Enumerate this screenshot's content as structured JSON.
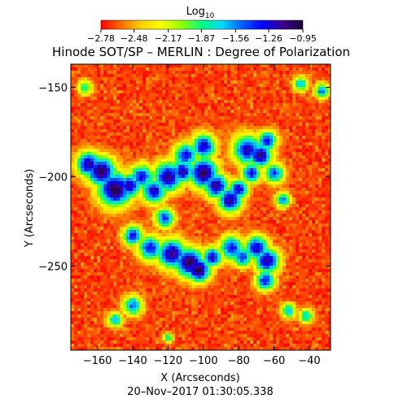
{
  "chart_data": {
    "type": "heatmap",
    "title": "Hinode SOT/SP – MERLIN : Degree of Polarization",
    "xlabel": "X (Arcseconds)",
    "ylabel": "Y (Arcseconds)",
    "footer": "20–Nov–2017 01:30:05.338",
    "xlim": [
      -175,
      -28
    ],
    "ylim": [
      -297,
      -137
    ],
    "xticks": [
      -160,
      -140,
      -120,
      -100,
      -80,
      -60,
      -40
    ],
    "yticks": [
      -150,
      -200,
      -250
    ],
    "colorbar": {
      "title": "Log",
      "title_subscript": "10",
      "range": [
        -2.78,
        -0.95
      ],
      "ticks": [
        -2.78,
        -2.48,
        -2.17,
        -1.87,
        -1.56,
        -1.26,
        -0.95
      ],
      "tick_labels": [
        "−2.78",
        "−2.48",
        "−2.17",
        "−1.87",
        "−1.56",
        "−1.26",
        "−0.95"
      ],
      "colormap": [
        "#ff0000",
        "#ff6a00",
        "#ffd200",
        "#ffff00",
        "#90ff00",
        "#00ff80",
        "#00d8ff",
        "#0060ff",
        "#0000ff",
        "#3c0090",
        "#1a0030"
      ]
    },
    "background_level": -2.7,
    "structures": [
      {
        "x": -165,
        "y": -193,
        "r": 5,
        "value": -1.1
      },
      {
        "x": -158,
        "y": -197,
        "r": 6,
        "value": -1.0
      },
      {
        "x": -150,
        "y": -207,
        "r": 7,
        "value": -0.98
      },
      {
        "x": -142,
        "y": -205,
        "r": 5,
        "value": -1.2
      },
      {
        "x": -135,
        "y": -200,
        "r": 5,
        "value": -1.3
      },
      {
        "x": -128,
        "y": -208,
        "r": 5,
        "value": -1.2
      },
      {
        "x": -120,
        "y": -200,
        "r": 6,
        "value": -1.1
      },
      {
        "x": -112,
        "y": -197,
        "r": 5,
        "value": -1.2
      },
      {
        "x": -110,
        "y": -188,
        "r": 5,
        "value": -1.3
      },
      {
        "x": -100,
        "y": -183,
        "r": 5,
        "value": -1.2
      },
      {
        "x": -100,
        "y": -198,
        "r": 6,
        "value": -1.0
      },
      {
        "x": -93,
        "y": -205,
        "r": 5,
        "value": -1.1
      },
      {
        "x": -85,
        "y": -213,
        "r": 5,
        "value": -1.1
      },
      {
        "x": -80,
        "y": -207,
        "r": 4,
        "value": -1.2
      },
      {
        "x": -75,
        "y": -185,
        "r": 6,
        "value": -1.2
      },
      {
        "x": -68,
        "y": -188,
        "r": 5,
        "value": -1.1
      },
      {
        "x": -64,
        "y": -180,
        "r": 4,
        "value": -1.3
      },
      {
        "x": -73,
        "y": -198,
        "r": 4,
        "value": -1.3
      },
      {
        "x": -60,
        "y": -198,
        "r": 4,
        "value": -1.4
      },
      {
        "x": -122,
        "y": -223,
        "r": 4,
        "value": -1.4
      },
      {
        "x": -118,
        "y": -243,
        "r": 6,
        "value": -1.1
      },
      {
        "x": -108,
        "y": -248,
        "r": 6,
        "value": -1.0
      },
      {
        "x": -103,
        "y": -252,
        "r": 5,
        "value": -0.98
      },
      {
        "x": -95,
        "y": -245,
        "r": 4,
        "value": -1.2
      },
      {
        "x": -130,
        "y": -240,
        "r": 5,
        "value": -1.3
      },
      {
        "x": -140,
        "y": -233,
        "r": 4,
        "value": -1.3
      },
      {
        "x": -84,
        "y": -240,
        "r": 5,
        "value": -1.3
      },
      {
        "x": -78,
        "y": -245,
        "r": 4,
        "value": -1.4
      },
      {
        "x": -70,
        "y": -240,
        "r": 5,
        "value": -1.2
      },
      {
        "x": -64,
        "y": -247,
        "r": 5,
        "value": -1.1
      },
      {
        "x": -65,
        "y": -258,
        "r": 4,
        "value": -1.3
      },
      {
        "x": -140,
        "y": -272,
        "r": 4,
        "value": -1.5
      },
      {
        "x": -150,
        "y": -280,
        "r": 3,
        "value": -1.6
      },
      {
        "x": -52,
        "y": -275,
        "r": 3,
        "value": -1.6
      },
      {
        "x": -42,
        "y": -278,
        "r": 3,
        "value": -1.7
      },
      {
        "x": -45,
        "y": -148,
        "r": 3,
        "value": -1.6
      },
      {
        "x": -33,
        "y": -152,
        "r": 3,
        "value": -1.5
      },
      {
        "x": -167,
        "y": -150,
        "r": 3,
        "value": -1.8
      },
      {
        "x": -55,
        "y": -213,
        "r": 3,
        "value": -1.5
      },
      {
        "x": -120,
        "y": -290,
        "r": 2,
        "value": -1.8
      }
    ]
  }
}
